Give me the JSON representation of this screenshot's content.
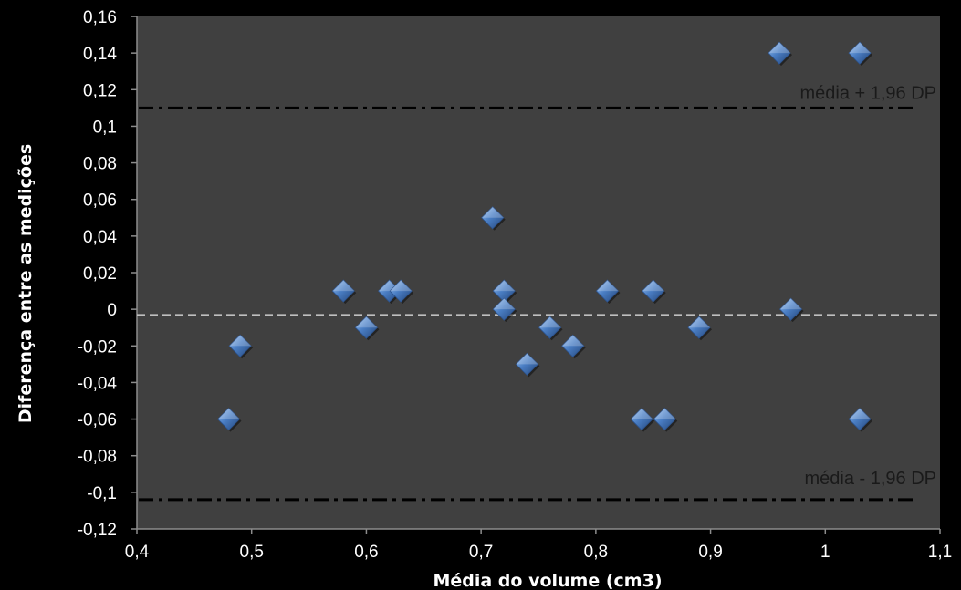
{
  "chart_data": {
    "type": "scatter",
    "title": "",
    "xlabel": "Média do volume (cm3)",
    "ylabel": "Diferença entre as medições",
    "xlim": [
      0.4,
      1.1
    ],
    "ylim": [
      -0.12,
      0.16
    ],
    "x_ticks": [
      "0,4",
      "0,5",
      "0,6",
      "0,7",
      "0,8",
      "0,9",
      "1",
      "1,1"
    ],
    "x_tick_values": [
      0.4,
      0.5,
      0.6,
      0.7,
      0.8,
      0.9,
      1.0,
      1.1
    ],
    "y_ticks": [
      "0,16",
      "0,14",
      "0,12",
      "0,1",
      "0,08",
      "0,06",
      "0,04",
      "0,02",
      "0",
      "-0,02",
      "-0,04",
      "-0,06",
      "-0,08",
      "-0,1",
      "-0,12"
    ],
    "y_tick_values": [
      0.16,
      0.14,
      0.12,
      0.1,
      0.08,
      0.06,
      0.04,
      0.02,
      0,
      -0.02,
      -0.04,
      -0.06,
      -0.08,
      -0.1,
      -0.12
    ],
    "grid": false,
    "legend": "none",
    "series": [
      {
        "marker": "diamond",
        "color": "#4a7ec4",
        "points": [
          {
            "x": 0.48,
            "y": -0.06
          },
          {
            "x": 0.49,
            "y": -0.02
          },
          {
            "x": 0.58,
            "y": 0.01
          },
          {
            "x": 0.6,
            "y": -0.01
          },
          {
            "x": 0.62,
            "y": 0.01
          },
          {
            "x": 0.63,
            "y": 0.01
          },
          {
            "x": 0.71,
            "y": 0.05
          },
          {
            "x": 0.72,
            "y": 0.01
          },
          {
            "x": 0.72,
            "y": 0.0
          },
          {
            "x": 0.74,
            "y": -0.03
          },
          {
            "x": 0.76,
            "y": -0.01
          },
          {
            "x": 0.78,
            "y": -0.02
          },
          {
            "x": 0.81,
            "y": 0.01
          },
          {
            "x": 0.84,
            "y": -0.06
          },
          {
            "x": 0.85,
            "y": 0.01
          },
          {
            "x": 0.86,
            "y": -0.06
          },
          {
            "x": 0.89,
            "y": -0.01
          },
          {
            "x": 0.96,
            "y": 0.14
          },
          {
            "x": 0.97,
            "y": 0.0
          },
          {
            "x": 1.03,
            "y": 0.14
          },
          {
            "x": 1.03,
            "y": -0.06
          }
        ]
      }
    ],
    "reference_lines": [
      {
        "name": "upper-limit",
        "y": 0.11,
        "style": "dash-dot",
        "color": "#000000",
        "label": "média + 1,96 DP"
      },
      {
        "name": "mean",
        "y": -0.003,
        "style": "dashed",
        "color": "#bfbfbf",
        "label": ""
      },
      {
        "name": "lower-limit",
        "y": -0.104,
        "style": "dash-dot",
        "color": "#000000",
        "label": "média - 1,96 DP"
      }
    ],
    "colors": {
      "background": "#000000",
      "plot_area": "#404040",
      "text": "#ffffff"
    }
  }
}
